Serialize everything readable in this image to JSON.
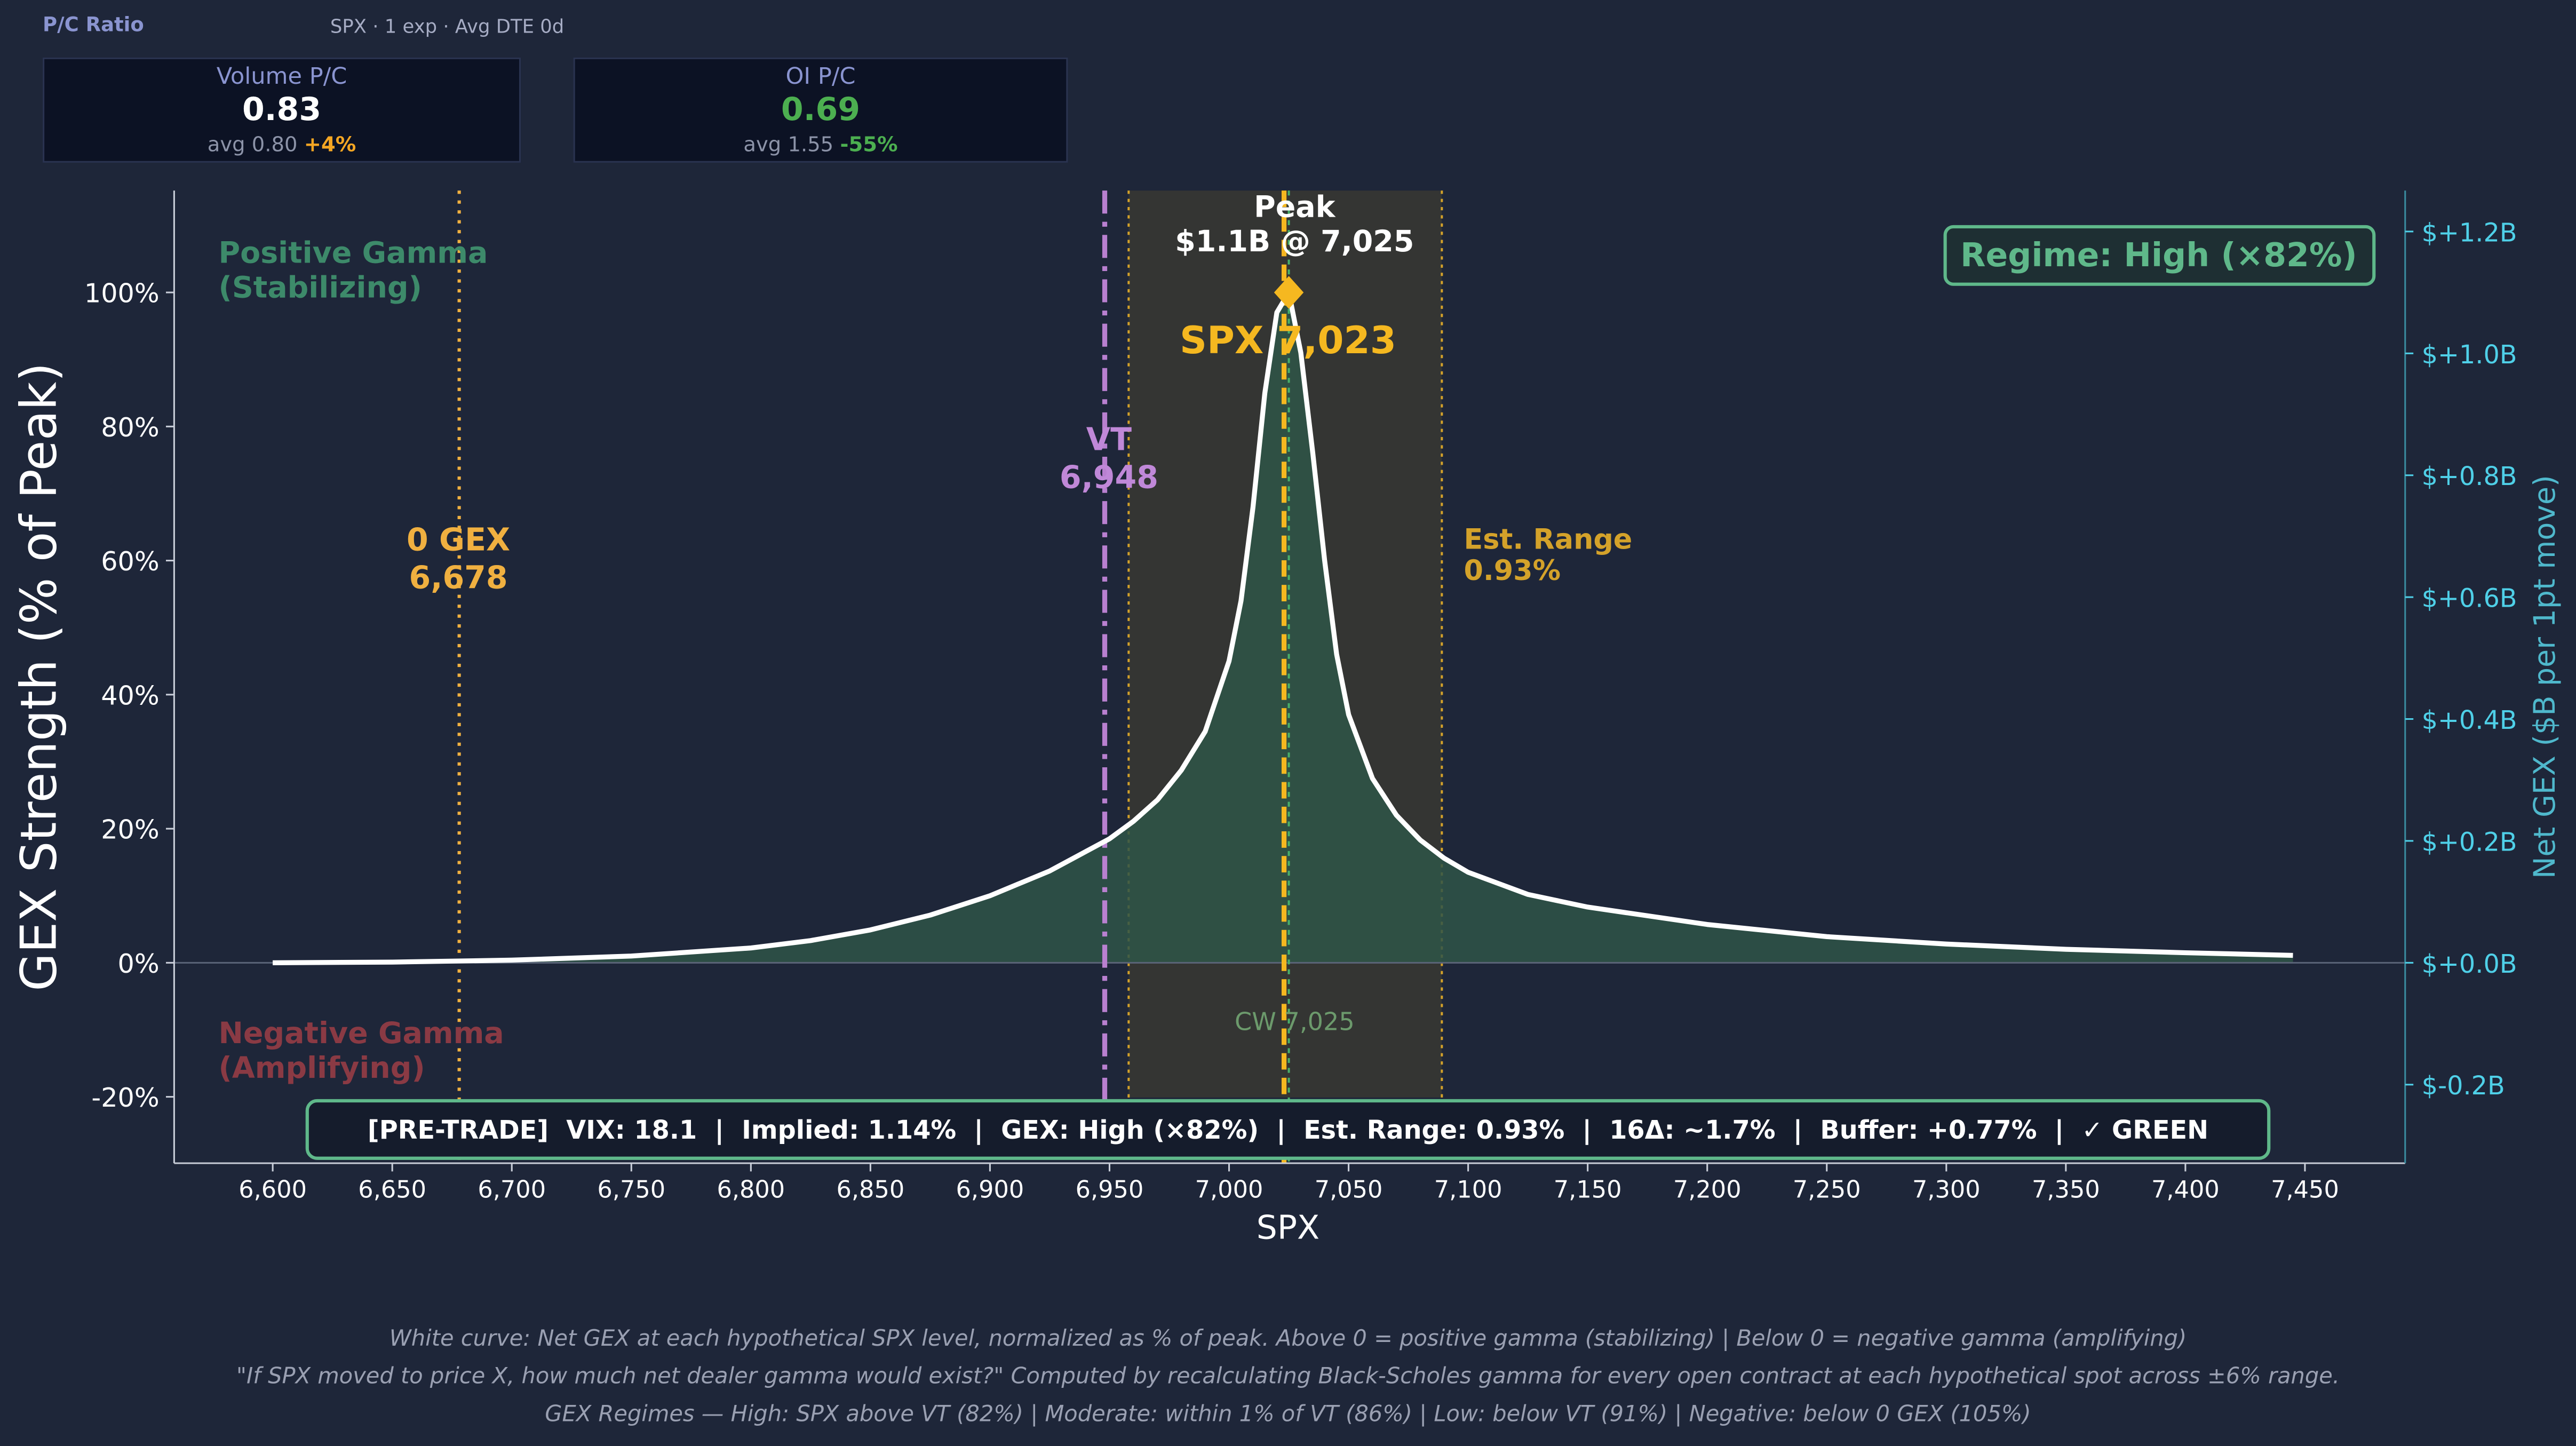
{
  "header": {
    "title": "P/C Ratio",
    "subtitle": "SPX · 1 exp · Avg DTE 0d"
  },
  "cards": [
    {
      "label": "Volume P/C",
      "value": "0.83",
      "value_color": "#ffffff",
      "avg_text": "avg 0.80",
      "change": "+4%",
      "change_color": "#f5a623"
    },
    {
      "label": "OI P/C",
      "value": "0.69",
      "value_color": "#4caf50",
      "avg_text": "avg 1.55",
      "change": "-55%",
      "change_color": "#4caf50"
    }
  ],
  "chart_data": {
    "type": "area",
    "xlabel": "SPX",
    "ylabel": "GEX Strength (% of Peak)",
    "y2label": "Net GEX ($B per 1pt move)",
    "xlim": [
      6560,
      7470
    ],
    "ylim": [
      -30,
      115
    ],
    "xticks": [
      6600,
      6650,
      6700,
      6750,
      6800,
      6850,
      6900,
      6950,
      7000,
      7050,
      7100,
      7150,
      7200,
      7250,
      7300,
      7350,
      7400,
      7450
    ],
    "xtick_labels": [
      "6,600",
      "6,650",
      "6,700",
      "6,750",
      "6,800",
      "6,850",
      "6,900",
      "6,950",
      "7,000",
      "7,050",
      "7,100",
      "7,150",
      "7,200",
      "7,250",
      "7,300",
      "7,350",
      "7,400",
      "7,450"
    ],
    "yticks": [
      -20,
      0,
      20,
      40,
      60,
      80,
      100
    ],
    "ytick_labels": [
      "-20%",
      "0%",
      "20%",
      "40%",
      "60%",
      "80%",
      "100%"
    ],
    "y2ticks": [
      -0.2,
      0.0,
      0.2,
      0.4,
      0.6,
      0.8,
      1.0,
      1.2
    ],
    "y2tick_labels": [
      "$-0.2B",
      "$+0.0B",
      "$+0.2B",
      "$+0.4B",
      "$+0.6B",
      "$+0.8B",
      "$+1.0B",
      "$+1.2B"
    ],
    "y2_peak_billions": 1.1,
    "series": [
      {
        "x": [
          6600,
          6650,
          6700,
          6750,
          6800,
          6825,
          6850,
          6875,
          6900,
          6925,
          6950,
          6960,
          6970,
          6980,
          6990,
          7000,
          7005,
          7010,
          7015,
          7020,
          7025,
          7030,
          7035,
          7040,
          7045,
          7050,
          7060,
          7070,
          7080,
          7090,
          7100,
          7125,
          7150,
          7200,
          7250,
          7300,
          7350,
          7400,
          7445
        ],
        "values": [
          0.0,
          0.1,
          0.4,
          1.0,
          2.2,
          3.3,
          4.9,
          7.1,
          10.0,
          13.7,
          18.5,
          21.1,
          24.3,
          28.7,
          34.5,
          45.0,
          54.0,
          68.0,
          85.0,
          97.0,
          100.0,
          91.0,
          76.0,
          60.0,
          46.0,
          37.0,
          27.5,
          22.0,
          18.3,
          15.6,
          13.5,
          10.2,
          8.3,
          5.7,
          3.9,
          2.8,
          2.0,
          1.5,
          1.1
        ]
      }
    ],
    "zero_gex": {
      "x": 6678,
      "label": "0 GEX",
      "value_label": "6,678"
    },
    "vt": {
      "x": 6948,
      "label": "VT",
      "value_label": "6,948"
    },
    "spot": {
      "x": 7023,
      "label": "SPX 7,023"
    },
    "peak": {
      "x": 7025,
      "y": 100,
      "label": "Peak",
      "value_label": "$1.1B @ 7,025"
    },
    "est_range": {
      "low": 6958,
      "high": 7089,
      "label": "Est. Range",
      "value_label": "0.93%"
    },
    "call_wall": {
      "x": 7025,
      "label": "CW 7,025"
    },
    "annotations": {
      "positive_gamma": [
        "Positive Gamma",
        "(Stabilizing)"
      ],
      "negative_gamma": [
        "Negative Gamma",
        "(Amplifying)"
      ],
      "regime": "Regime: High (×82%)",
      "status_bar": "[PRE-TRADE]  VIX: 18.1  |  Implied: 1.14%  |  GEX: High (×82%)  |  Est. Range: 0.93%  |  16Δ: ~1.7%  |  Buffer: +0.77%  |  ✓ GREEN"
    }
  },
  "footer": {
    "lines": [
      "White curve: Net GEX at each hypothetical SPX level, normalized as % of peak.  Above 0 = positive gamma (stabilizing)  |  Below 0 = negative gamma (amplifying)",
      "\"If SPX moved to price X, how much net dealer gamma would exist?\" Computed by recalculating Black-Scholes gamma for every open contract at each hypothetical spot across ±6% range.",
      "GEX Regimes — High: SPX above VT (82%)  |  Moderate: within 1% of VT (86%)  |  Low: below VT (91%)  |  Negative: below 0 GEX (105%)"
    ]
  },
  "colors": {
    "background": "#1e2639",
    "curve": "#ffffff",
    "fill": "#2f5548",
    "zero_gex": "#f0b040",
    "vt": "#b980d0",
    "spot": "#f5b820",
    "est_range": "#d4a22a",
    "positive": "#3d8a6a",
    "negative": "#8a3a44",
    "right_axis": "#4fd0e8",
    "regime": "#5fb88a"
  }
}
